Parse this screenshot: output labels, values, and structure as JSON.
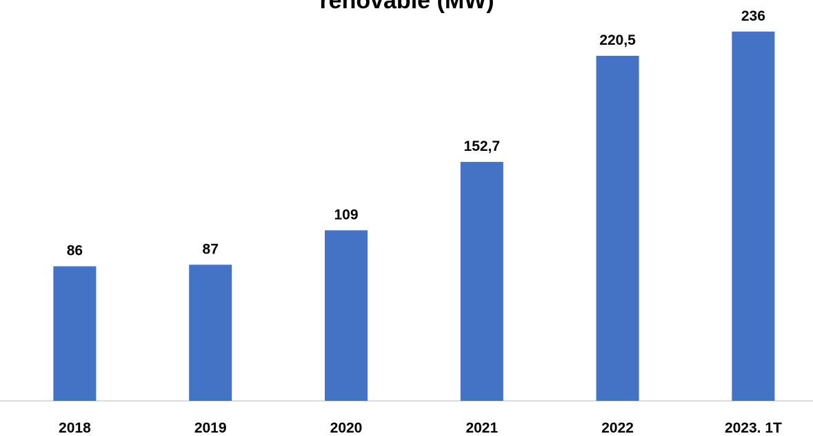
{
  "chart_data": {
    "type": "bar",
    "title": "renovable (MW)",
    "categories": [
      "2018",
      "2019",
      "2020",
      "2021",
      "2022",
      "2023. 1T"
    ],
    "values": [
      86,
      87,
      109,
      152.7,
      220.5,
      236
    ],
    "value_labels": [
      "86",
      "87",
      "109",
      "152,7",
      "220,5",
      "236"
    ],
    "color": "#4472c4",
    "ylim": [
      0,
      250
    ]
  }
}
